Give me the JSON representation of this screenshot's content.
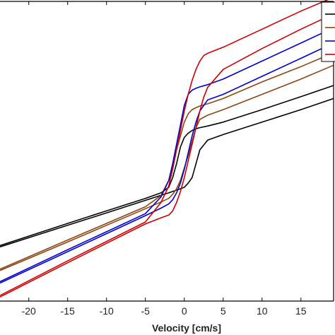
{
  "chart_data": {
    "type": "line",
    "title": "",
    "xlabel": "Velocity [cm/s]",
    "ylabel": "",
    "xlim": [
      -23.7,
      19.2
    ],
    "ylim": [
      -5.85,
      4.95
    ],
    "x_ticks": [
      -20,
      -15,
      -10,
      -5,
      0,
      5,
      10,
      15
    ],
    "x_tick_labels": [
      "-20",
      "-15",
      "-10",
      "-5",
      "0",
      "5",
      "10",
      "15"
    ],
    "grid": false,
    "legend": {
      "position": "top-right",
      "entries": [
        "",
        "",
        "",
        ""
      ]
    },
    "series": [
      {
        "color": "#000000",
        "x": [
          -23.7,
          -15,
          -10,
          -5,
          -3,
          -2,
          -1.5,
          -1,
          -0.5,
          0,
          0.5,
          1,
          1.5,
          2,
          3,
          5,
          10,
          15,
          19.2
        ],
        "upper": [
          -3.85,
          -3.05,
          -2.6,
          -2.15,
          -1.95,
          -1.75,
          -1.4,
          -0.9,
          -0.3,
          0.05,
          0.2,
          0.3,
          0.36,
          0.4,
          0.46,
          0.6,
          1.05,
          1.52,
          1.92
        ],
        "lower": [
          -3.9,
          -3.12,
          -2.67,
          -2.22,
          -2.04,
          -1.95,
          -1.9,
          -1.85,
          -1.8,
          -1.75,
          -1.6,
          -1.4,
          -0.9,
          -0.4,
          -0.05,
          0.15,
          0.6,
          1.05,
          1.45
        ]
      },
      {
        "color": "#8B4513",
        "x": [
          -23.7,
          -15,
          -10,
          -5,
          -3,
          -2,
          -1.5,
          -1,
          -0.5,
          0,
          0.5,
          1,
          1.5,
          2,
          3,
          5,
          10,
          15,
          19.2
        ],
        "upper": [
          -4.7,
          -3.65,
          -3.05,
          -2.45,
          -2.05,
          -1.5,
          -1.0,
          -0.4,
          0.1,
          0.6,
          0.9,
          1.05,
          1.12,
          1.18,
          1.26,
          1.45,
          2.05,
          2.6,
          3.1
        ],
        "lower": [
          -4.75,
          -3.72,
          -3.12,
          -2.52,
          -2.28,
          -2.15,
          -2.0,
          -1.8,
          -1.5,
          -1.05,
          -0.6,
          -0.1,
          0.4,
          0.7,
          0.85,
          1.05,
          1.6,
          2.15,
          2.65
        ]
      },
      {
        "color": "#0000CC",
        "x": [
          -23.7,
          -15,
          -10,
          -5,
          -3,
          -2,
          -1.5,
          -1,
          -0.5,
          0,
          0.5,
          1,
          1.5,
          2,
          3,
          5,
          10,
          15,
          19.2
        ],
        "upper": [
          -5.15,
          -4.0,
          -3.35,
          -2.7,
          -2.1,
          -1.5,
          -0.9,
          -0.2,
          0.5,
          1.2,
          1.6,
          1.75,
          1.82,
          1.87,
          1.95,
          2.15,
          2.8,
          3.45,
          4.0
        ],
        "lower": [
          -5.2,
          -4.07,
          -3.42,
          -2.77,
          -2.5,
          -2.35,
          -2.2,
          -1.95,
          -1.6,
          -1.1,
          -0.5,
          0.1,
          0.6,
          1.0,
          1.4,
          1.6,
          2.25,
          2.9,
          3.45
        ]
      },
      {
        "color": "#CC0000",
        "x": [
          -23.7,
          -15,
          -10,
          -5,
          -3,
          -2,
          -1.5,
          -1,
          -0.5,
          0,
          0.5,
          1,
          1.5,
          2,
          2.5,
          3,
          5,
          10,
          15,
          19.2
        ],
        "upper": [
          -5.65,
          -4.4,
          -3.7,
          -3.0,
          -2.3,
          -1.7,
          -1.1,
          -0.4,
          0.3,
          1.0,
          1.6,
          2.1,
          2.5,
          2.8,
          3.0,
          3.08,
          3.3,
          3.95,
          4.6,
          5.1
        ],
        "lower": [
          -5.7,
          -4.47,
          -3.77,
          -3.07,
          -2.85,
          -2.75,
          -2.6,
          -2.3,
          -1.9,
          -1.4,
          -0.8,
          -0.2,
          0.4,
          1.0,
          1.5,
          1.85,
          2.5,
          3.25,
          3.95,
          4.5
        ]
      }
    ]
  }
}
